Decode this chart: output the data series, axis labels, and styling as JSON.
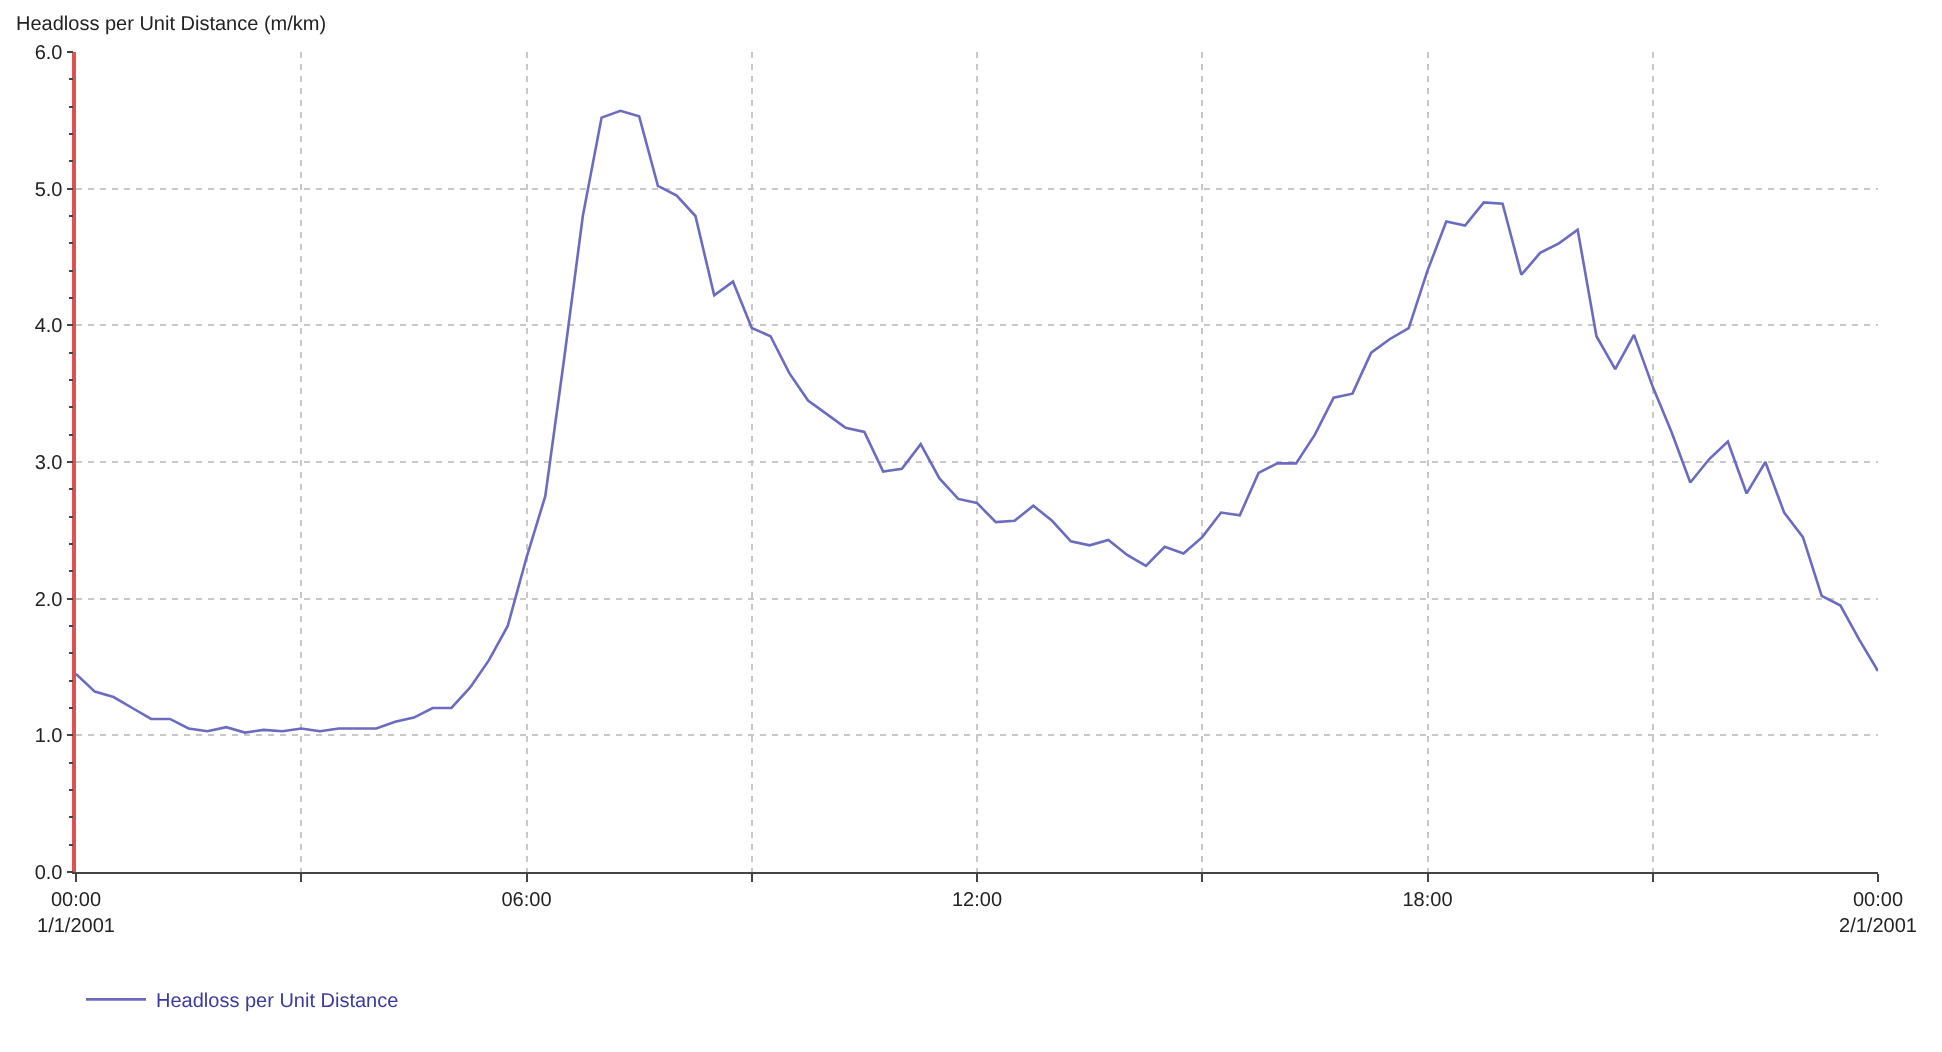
{
  "chart_data": {
    "type": "line",
    "ylabel": "Headloss per Unit Distance (m/km)",
    "x": [
      0,
      0.25,
      0.5,
      0.75,
      1,
      1.25,
      1.5,
      1.75,
      2,
      2.25,
      2.5,
      2.75,
      3,
      3.25,
      3.5,
      3.75,
      4,
      4.25,
      4.5,
      4.75,
      5,
      5.25,
      5.5,
      5.75,
      6,
      6.25,
      6.5,
      6.75,
      7,
      7.25,
      7.5,
      7.75,
      8,
      8.25,
      8.5,
      8.75,
      9,
      9.25,
      9.5,
      9.75,
      10,
      10.25,
      10.5,
      10.75,
      11,
      11.25,
      11.5,
      11.75,
      12,
      12.25,
      12.5,
      12.75,
      13,
      13.25,
      13.5,
      13.75,
      14,
      14.25,
      14.5,
      14.75,
      15,
      15.25,
      15.5,
      15.75,
      16,
      16.25,
      16.5,
      16.75,
      17,
      17.25,
      17.5,
      17.75,
      18,
      18.25,
      18.5,
      18.75,
      19,
      19.25,
      19.5,
      19.75,
      20,
      20.25,
      20.5,
      20.75,
      21,
      21.25,
      21.5,
      21.75,
      22,
      22.25,
      22.5,
      22.75,
      23,
      23.25,
      23.5,
      23.75,
      24
    ],
    "series": [
      {
        "name": "Headloss per Unit Distance",
        "color": "#6b6bc0",
        "values": [
          1.45,
          1.32,
          1.28,
          1.2,
          1.12,
          1.12,
          1.05,
          1.03,
          1.06,
          1.02,
          1.04,
          1.03,
          1.05,
          1.03,
          1.05,
          1.05,
          1.05,
          1.1,
          1.13,
          1.2,
          1.2,
          1.35,
          1.55,
          1.8,
          2.3,
          2.75,
          3.75,
          4.8,
          5.52,
          5.57,
          5.53,
          5.02,
          4.95,
          4.8,
          4.22,
          4.32,
          3.98,
          3.92,
          3.65,
          3.45,
          3.35,
          3.25,
          3.22,
          2.93,
          2.95,
          3.13,
          2.88,
          2.73,
          2.7,
          2.56,
          2.57,
          2.68,
          2.57,
          2.42,
          2.39,
          2.43,
          2.32,
          2.24,
          2.38,
          2.33,
          2.45,
          2.63,
          2.61,
          2.92,
          2.99,
          2.99,
          3.2,
          3.47,
          3.5,
          3.8,
          3.9,
          3.98,
          4.4,
          4.76,
          4.73,
          4.9,
          4.89,
          4.37,
          4.53,
          4.6,
          4.7,
          3.92,
          3.68,
          3.93,
          3.55,
          3.22,
          2.85,
          3.02,
          3.15,
          2.77,
          3.0,
          2.63,
          2.45,
          2.02,
          1.95,
          1.7,
          1.47
        ]
      }
    ],
    "xlim": [
      0,
      24
    ],
    "xticks": [
      {
        "value": 0,
        "label": "00:00\n1/1/2001"
      },
      {
        "value": 3,
        "label": null
      },
      {
        "value": 6,
        "label": "06:00"
      },
      {
        "value": 9,
        "label": null
      },
      {
        "value": 12,
        "label": "12:00"
      },
      {
        "value": 15,
        "label": null
      },
      {
        "value": 18,
        "label": "18:00"
      },
      {
        "value": 21,
        "label": null
      },
      {
        "value": 24,
        "label": "00:00\n2/1/2001"
      }
    ],
    "ylim": [
      0,
      6
    ],
    "yticks": [
      {
        "value": 0,
        "label": "0.0"
      },
      {
        "value": 1,
        "label": "1.0"
      },
      {
        "value": 2,
        "label": "2.0"
      },
      {
        "value": 3,
        "label": "3.0"
      },
      {
        "value": 4,
        "label": "4.0"
      },
      {
        "value": 5,
        "label": "5.0"
      },
      {
        "value": 6,
        "label": "6.0"
      }
    ],
    "grid": true,
    "legend": "bottom left",
    "marker": "none",
    "line_style": "solid"
  }
}
